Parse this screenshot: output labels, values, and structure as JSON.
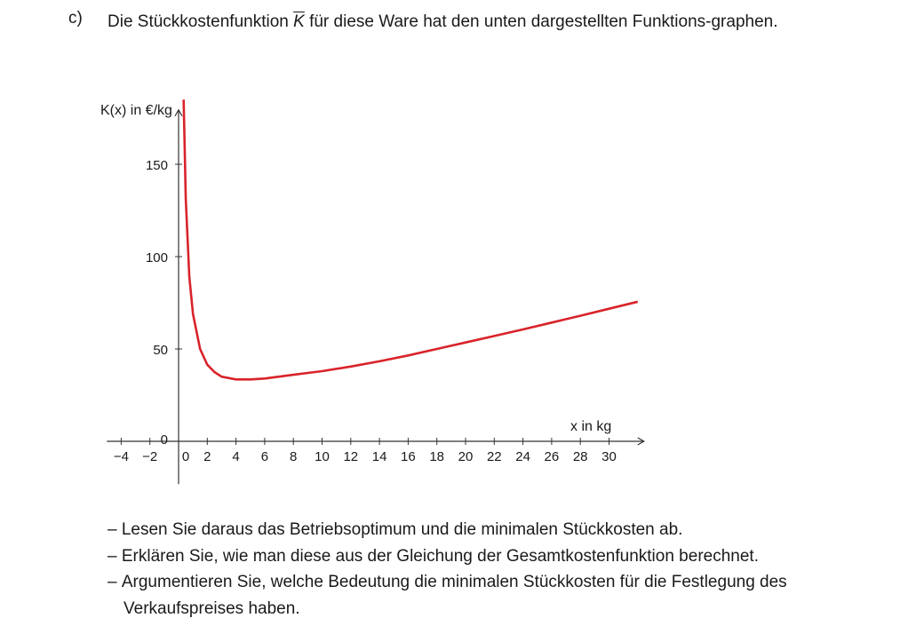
{
  "task": {
    "label": "c)",
    "intro_before": "Die Stückkostenfunktion ",
    "intro_symbol": "K",
    "intro_after": " für diese Ware hat den unten dargestellten Funktions-graphen."
  },
  "bullets": [
    "Lesen Sie daraus das Betriebsoptimum und die minimalen Stückkosten ab.",
    "Erklären Sie, wie man diese aus der Gleichung der Gesamtkostenfunktion berechnet.",
    "Argumentieren Sie, welche Bedeutung die minimalen Stückkosten für die Festlegung des Verkaufspreises haben."
  ],
  "chart_data": {
    "type": "line",
    "ylabel": "K(x) in €/kg",
    "xlabel": "x in kg",
    "xlim": [
      -5,
      32
    ],
    "ylim": [
      -15,
      178
    ],
    "x_ticks": [
      -4,
      -2,
      0,
      2,
      4,
      6,
      8,
      10,
      12,
      14,
      16,
      18,
      20,
      22,
      24,
      26,
      28,
      30
    ],
    "y_ticks": [
      0,
      50,
      100,
      150
    ],
    "grid": false,
    "series": [
      {
        "color": "#d9232a",
        "x": [
          0.35,
          0.5,
          0.75,
          1,
          1.5,
          2,
          2.5,
          3,
          4,
          5,
          6,
          7,
          8,
          9,
          10,
          12,
          14,
          16,
          18,
          20,
          22,
          24,
          26,
          28,
          30,
          32
        ],
        "y": [
          185,
          131,
          89,
          69,
          50,
          41.5,
          37.5,
          35,
          33.5,
          33.5,
          34,
          35,
          36,
          37,
          38,
          40.5,
          43.3,
          46.5,
          50,
          53.5,
          57,
          60.6,
          64.3,
          68,
          71.8,
          75.6
        ]
      }
    ]
  }
}
